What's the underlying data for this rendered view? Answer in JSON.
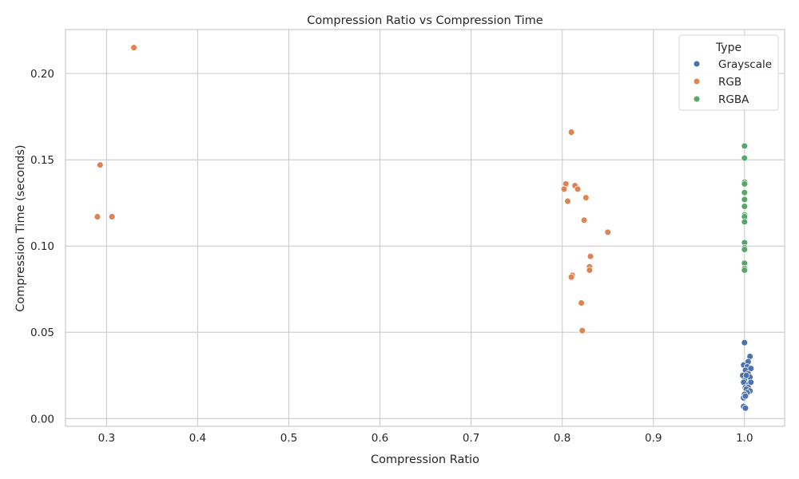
{
  "chart_data": {
    "type": "scatter",
    "title": "Compression Ratio vs Compression Time",
    "xlabel": "Compression Ratio",
    "ylabel": "Compression Time (seconds)",
    "xlim": [
      0.255,
      1.044
    ],
    "ylim": [
      -0.0045,
      0.2255
    ],
    "xticks": [
      0.3,
      0.4,
      0.5,
      0.6,
      0.7,
      0.8,
      0.9,
      1.0
    ],
    "xtick_labels": [
      "0.3",
      "0.4",
      "0.5",
      "0.6",
      "0.7",
      "0.8",
      "0.9",
      "1.0"
    ],
    "yticks": [
      0.0,
      0.05,
      0.1,
      0.15,
      0.2
    ],
    "ytick_labels": [
      "0.00",
      "0.05",
      "0.10",
      "0.15",
      "0.20"
    ],
    "grid": true,
    "legend": {
      "title": "Type",
      "placement": "top-right"
    },
    "series": [
      {
        "name": "Grayscale",
        "color": "#4c72b0",
        "points": [
          [
            1.0,
            0.044
          ],
          [
            1.006,
            0.036
          ],
          [
            0.999,
            0.031
          ],
          [
            1.004,
            0.033
          ],
          [
            1.003,
            0.03
          ],
          [
            1.001,
            0.028
          ],
          [
            1.007,
            0.029
          ],
          [
            0.998,
            0.025
          ],
          [
            1.004,
            0.026
          ],
          [
            1.006,
            0.024
          ],
          [
            1.0,
            0.022
          ],
          [
            0.999,
            0.021
          ],
          [
            1.005,
            0.02
          ],
          [
            1.007,
            0.021
          ],
          [
            1.001,
            0.018
          ],
          [
            1.004,
            0.018
          ],
          [
            1.002,
            0.017
          ],
          [
            1.006,
            0.016
          ],
          [
            1.003,
            0.015
          ],
          [
            1.0,
            0.014
          ],
          [
            0.999,
            0.012
          ],
          [
            1.001,
            0.013
          ],
          [
            0.999,
            0.007
          ],
          [
            1.001,
            0.006
          ],
          [
            1.002,
            0.025
          ]
        ]
      },
      {
        "name": "RGB",
        "color": "#dd8452",
        "points": [
          [
            0.33,
            0.215
          ],
          [
            0.293,
            0.147
          ],
          [
            0.29,
            0.117
          ],
          [
            0.306,
            0.117
          ],
          [
            0.81,
            0.166
          ],
          [
            0.804,
            0.136
          ],
          [
            0.814,
            0.135
          ],
          [
            0.802,
            0.133
          ],
          [
            0.817,
            0.133
          ],
          [
            0.826,
            0.128
          ],
          [
            0.806,
            0.126
          ],
          [
            0.824,
            0.115
          ],
          [
            0.85,
            0.108
          ],
          [
            0.831,
            0.094
          ],
          [
            0.83,
            0.088
          ],
          [
            0.83,
            0.086
          ],
          [
            0.811,
            0.083
          ],
          [
            0.81,
            0.082
          ],
          [
            0.821,
            0.067
          ],
          [
            0.822,
            0.051
          ]
        ]
      },
      {
        "name": "RGBA",
        "color": "#55a868",
        "points": [
          [
            1.0,
            0.158
          ],
          [
            1.0,
            0.151
          ],
          [
            1.0,
            0.137
          ],
          [
            1.0,
            0.136
          ],
          [
            1.0,
            0.131
          ],
          [
            1.0,
            0.127
          ],
          [
            1.0,
            0.123
          ],
          [
            1.0,
            0.118
          ],
          [
            1.0,
            0.117
          ],
          [
            1.0,
            0.114
          ],
          [
            1.0,
            0.102
          ],
          [
            1.0,
            0.099
          ],
          [
            1.0,
            0.098
          ],
          [
            1.0,
            0.09
          ],
          [
            1.0,
            0.087
          ],
          [
            1.0,
            0.086
          ]
        ]
      }
    ]
  }
}
